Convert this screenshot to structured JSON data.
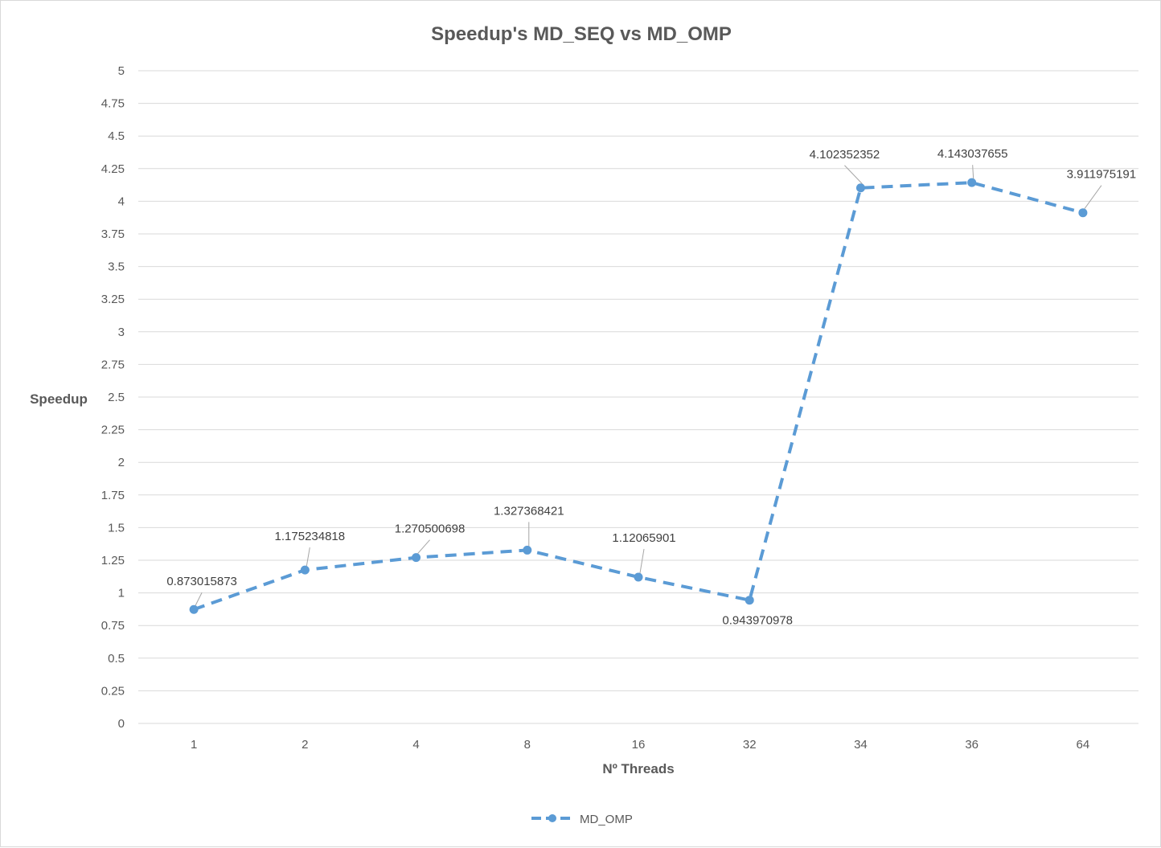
{
  "chart_data": {
    "type": "line",
    "title": "Speedup's MD_SEQ vs MD_OMP",
    "xlabel": "Nº Threads",
    "ylabel": "Speedup",
    "categories": [
      "1",
      "2",
      "4",
      "8",
      "16",
      "32",
      "34",
      "36",
      "64"
    ],
    "series": [
      {
        "name": "MD_OMP",
        "values": [
          0.873015873,
          1.175234818,
          1.270500698,
          1.327368421,
          1.12065901,
          0.943970978,
          4.102352352,
          4.143037655,
          3.911975191
        ],
        "data_labels": [
          "0.873015873",
          "1.175234818",
          "1.270500698",
          "1.327368421",
          "1.12065901",
          "0.943970978",
          "4.102352352",
          "4.143037655",
          "3.911975191"
        ],
        "color": "#5b9bd5",
        "line_style": "dashed",
        "marker": "circle"
      }
    ],
    "ylim": [
      0,
      5
    ],
    "yticks": [
      "0",
      "0.25",
      "0.5",
      "0.75",
      "1",
      "1.25",
      "1.5",
      "1.75",
      "2",
      "2.25",
      "2.5",
      "2.75",
      "3",
      "3.25",
      "3.5",
      "3.75",
      "4",
      "4.25",
      "4.5",
      "4.75",
      "5"
    ],
    "grid": true,
    "legend_position": "bottom"
  }
}
